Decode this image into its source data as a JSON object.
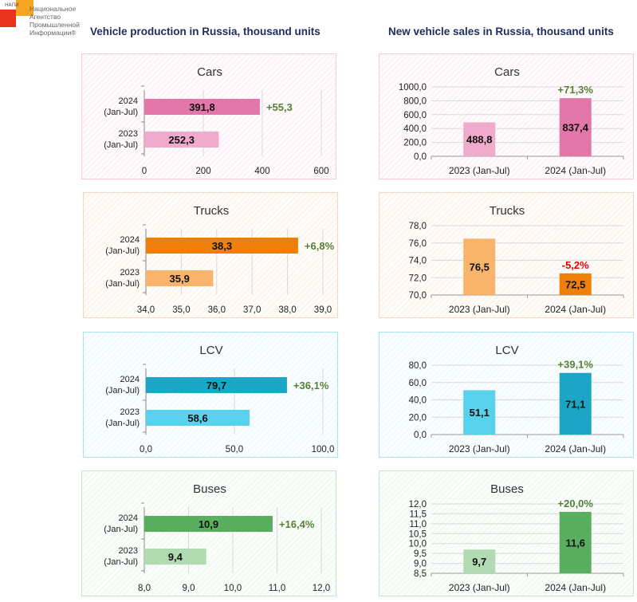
{
  "logo": {
    "abbr": "НАПИ",
    "text": "Национальное\nАгентство\nПромышленной\nИнформации®"
  },
  "headings": {
    "production": "Vehicle production in Russia, thousand units",
    "sales": "New vehicle sales in Russia, thousand units"
  },
  "chart_data": [
    {
      "id": "prod-cars",
      "type": "bar",
      "orientation": "horizontal",
      "title": "Cars",
      "categories": [
        "2024\n(Jan-Jul)",
        "2023\n(Jan-Jul)"
      ],
      "values": [
        391.8,
        252.3
      ],
      "labels": [
        "391,8",
        "252,3"
      ],
      "change": "+55,3",
      "change_color": "#548235",
      "xlim": [
        0,
        600
      ],
      "ticks": [
        0,
        200,
        400,
        600
      ],
      "tick_labels": [
        "0",
        "200",
        "400",
        "600"
      ],
      "colors": [
        "#e377a9",
        "#f0aacb"
      ],
      "border": "#f4cbe0",
      "bg": "#fdf3f8",
      "grid": true
    },
    {
      "id": "prod-trucks",
      "type": "bar",
      "orientation": "horizontal",
      "title": "Trucks",
      "categories": [
        "2024\n(Jan-Jul)",
        "2023\n(Jan-Jul)"
      ],
      "values": [
        38.3,
        35.9
      ],
      "labels": [
        "38,3",
        "35,9"
      ],
      "change": "+6,8%",
      "change_color": "#548235",
      "xlim": [
        34,
        39
      ],
      "ticks": [
        34,
        35,
        36,
        37,
        38,
        39
      ],
      "tick_labels": [
        "34,0",
        "35,0",
        "36,0",
        "37,0",
        "38,0",
        "39,0"
      ],
      "colors": [
        "#f07f09",
        "#f9b46b"
      ],
      "border": "#f9d6b8",
      "bg": "#fef6ef",
      "grid": true
    },
    {
      "id": "prod-lcv",
      "type": "bar",
      "orientation": "horizontal",
      "title": "LCV",
      "categories": [
        "2024\n(Jan-Jul)",
        "2023\n(Jan-Jul)"
      ],
      "values": [
        79.7,
        58.6
      ],
      "labels": [
        "79,7",
        "58,6"
      ],
      "change": "+36,1%",
      "change_color": "#548235",
      "xlim": [
        0,
        100
      ],
      "ticks": [
        0,
        50,
        100
      ],
      "tick_labels": [
        "0,0",
        "50,0",
        "100,0"
      ],
      "colors": [
        "#1aa6c4",
        "#58d1ec"
      ],
      "border": "#a9e3ef",
      "bg": "#f2fbfd",
      "grid": true
    },
    {
      "id": "prod-buses",
      "type": "bar",
      "orientation": "horizontal",
      "title": "Buses",
      "categories": [
        "2024\n(Jan-Jul)",
        "2023\n(Jan-Jul)"
      ],
      "values": [
        10.9,
        9.4
      ],
      "labels": [
        "10,9",
        "9,4"
      ],
      "change": "+16,4%",
      "change_color": "#548235",
      "xlim": [
        8,
        12
      ],
      "ticks": [
        8,
        9,
        10,
        11,
        12
      ],
      "tick_labels": [
        "8,0",
        "9,0",
        "10,0",
        "11,0",
        "12,0"
      ],
      "colors": [
        "#5aae5f",
        "#b1dbb3"
      ],
      "border": "#c5e5c6",
      "bg": "#f4faf4",
      "grid": true
    },
    {
      "id": "sales-cars",
      "type": "bar",
      "orientation": "vertical",
      "title": "Cars",
      "categories": [
        "2023 (Jan-Jul)",
        "2024 (Jan-Jul)"
      ],
      "values": [
        488.8,
        837.4
      ],
      "labels": [
        "488,8",
        "837,4"
      ],
      "change": "+71,3%",
      "change_color": "#548235",
      "ylim": [
        0,
        1000
      ],
      "ticks": [
        0,
        200,
        400,
        600,
        800,
        1000
      ],
      "tick_labels": [
        "0,0",
        "200,0",
        "400,0",
        "600,0",
        "800,0",
        "1000,0"
      ],
      "colors": [
        "#f0aacb",
        "#e377a9"
      ],
      "border": "#f4cbe0",
      "bg": "#fdf3f8",
      "grid": true
    },
    {
      "id": "sales-trucks",
      "type": "bar",
      "orientation": "vertical",
      "title": "Trucks",
      "categories": [
        "2023 (Jan-Jul)",
        "2024 (Jan-Jul)"
      ],
      "values": [
        76.5,
        72.5
      ],
      "labels": [
        "76,5",
        "72,5"
      ],
      "change": "-5,2%",
      "change_color": "#e00000",
      "ylim": [
        70,
        78
      ],
      "ticks": [
        70,
        72,
        74,
        76,
        78
      ],
      "tick_labels": [
        "70,0",
        "72,0",
        "74,0",
        "76,0",
        "78,0"
      ],
      "colors": [
        "#f9b46b",
        "#f07f09"
      ],
      "border": "#f9d6b8",
      "bg": "#fef6ef",
      "grid": true
    },
    {
      "id": "sales-lcv",
      "type": "bar",
      "orientation": "vertical",
      "title": "LCV",
      "categories": [
        "2023 (Jan-Jul)",
        "2024 (Jan-Jul)"
      ],
      "values": [
        51.1,
        71.1
      ],
      "labels": [
        "51,1",
        "71,1"
      ],
      "change": "+39,1%",
      "change_color": "#548235",
      "ylim": [
        0,
        80
      ],
      "ticks": [
        0,
        20,
        40,
        60,
        80
      ],
      "tick_labels": [
        "0,0",
        "20,0",
        "40,0",
        "60,0",
        "80,0"
      ],
      "colors": [
        "#58d1ec",
        "#1aa6c4"
      ],
      "border": "#a9e3ef",
      "bg": "#f2fbfd",
      "grid": true
    },
    {
      "id": "sales-buses",
      "type": "bar",
      "orientation": "vertical",
      "title": "Buses",
      "categories": [
        "2023 (Jan-Jul)",
        "2024 (Jan-Jul)"
      ],
      "values": [
        9.7,
        11.6
      ],
      "labels": [
        "9,7",
        "11,6"
      ],
      "change": "+20,0%",
      "change_color": "#548235",
      "ylim": [
        8.5,
        12
      ],
      "ticks": [
        8.5,
        9,
        9.5,
        10,
        10.5,
        11,
        11.5,
        12
      ],
      "tick_labels": [
        "8,5",
        "9,0",
        "9,5",
        "10,0",
        "10,5",
        "11,0",
        "11,5",
        "12,0"
      ],
      "colors": [
        "#b1dbb3",
        "#5aae5f"
      ],
      "border": "#c5e5c6",
      "bg": "#f4faf4",
      "grid": true
    }
  ]
}
